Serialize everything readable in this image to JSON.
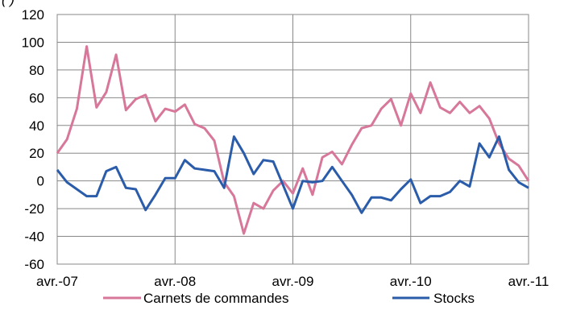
{
  "header_fragment": "(                 )",
  "chart_data": {
    "type": "line",
    "x_tick_labels": [
      "avr.-07",
      "avr.-08",
      "avr.-09",
      "avr.-10",
      "avr.-11"
    ],
    "y_ticks": [
      -60,
      -40,
      -20,
      0,
      20,
      40,
      60,
      80,
      100,
      120
    ],
    "ylim": [
      -60,
      120
    ],
    "grid": true,
    "legend_position": "bottom",
    "series": [
      {
        "name": "Carnets de commandes",
        "color": "#d7779a",
        "values": [
          20,
          30,
          52,
          97,
          53,
          64,
          91,
          51,
          59,
          62,
          43,
          52,
          50,
          55,
          41,
          38,
          29,
          -1,
          -11,
          -38,
          -16,
          -20,
          -7,
          0,
          -9,
          9,
          -10,
          17,
          21,
          12,
          26,
          38,
          40,
          52,
          59,
          40,
          63,
          49,
          71,
          53,
          49,
          57,
          49,
          54,
          45,
          27,
          16,
          11,
          0
        ]
      },
      {
        "name": "Stocks",
        "color": "#2a5caa",
        "values": [
          8,
          -1,
          -6,
          -11,
          -11,
          7,
          10,
          -5,
          -6,
          -21,
          -10,
          2,
          2,
          15,
          9,
          8,
          7,
          -5,
          32,
          20,
          5,
          15,
          14,
          -3,
          -20,
          0,
          -1,
          0,
          10,
          0,
          -10,
          -23,
          -12,
          -12,
          -14,
          -6,
          1,
          -16,
          -11,
          -11,
          -8,
          0,
          -4,
          27,
          17,
          32,
          8,
          -1,
          -5
        ]
      }
    ]
  }
}
